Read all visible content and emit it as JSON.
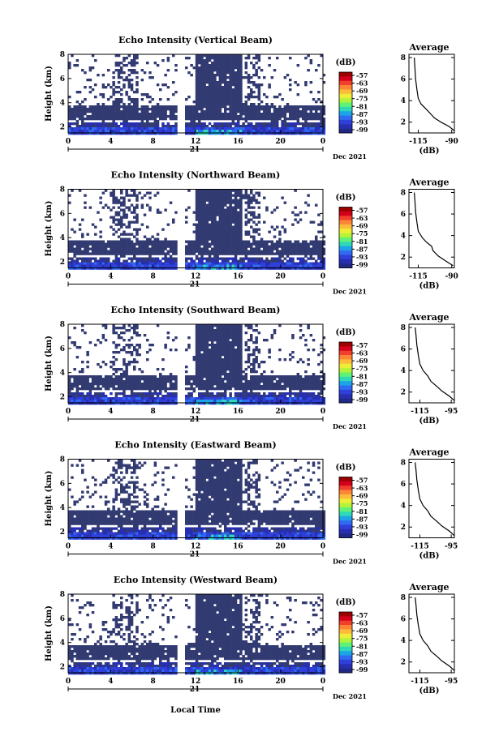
{
  "colorbar": {
    "unit": "(dB)",
    "labels": [
      "-57",
      "-63",
      "-69",
      "-75",
      "-81",
      "-87",
      "-93",
      "-99"
    ],
    "colors": [
      "#9d0000",
      "#d3001c",
      "#f0402c",
      "#fb8636",
      "#fdbb3c",
      "#eeee38",
      "#b5f23a",
      "#5ef276",
      "#2fd9b8",
      "#1ca3e8",
      "#2f6af0",
      "#2f3fd9",
      "#272fb0",
      "#202886"
    ]
  },
  "axes": {
    "ylabel": "Height (km)",
    "xlabel": "Local Time",
    "date_tag": "21",
    "date_label": "Dec 2021",
    "avg_title": "Average",
    "avg_xlabel": "(dB)"
  },
  "chart_data": [
    {
      "type": "heatmap",
      "title": "Echo Intensity (Vertical Beam)",
      "x_ticks": [
        "0",
        "4",
        "8",
        "12",
        "16",
        "20",
        "0"
      ],
      "y_ticks": [
        "2",
        "4",
        "6",
        "8"
      ],
      "xlim": [
        0,
        24
      ],
      "ylim": [
        1.5,
        8
      ],
      "avg_x_ticks": [
        "-115",
        "-90"
      ],
      "avg_profile": [
        [
          -88,
          1.2
        ],
        [
          -92,
          1.6
        ],
        [
          -98,
          2.0
        ],
        [
          -103,
          2.4
        ],
        [
          -106,
          2.8
        ],
        [
          -109,
          3.2
        ],
        [
          -113,
          3.7
        ],
        [
          -115,
          4.2
        ],
        [
          -116,
          5.0
        ],
        [
          -117,
          6.0
        ],
        [
          -117.5,
          7.0
        ],
        [
          -118,
          8.0
        ]
      ]
    },
    {
      "type": "heatmap",
      "title": "Echo Intensity (Northward Beam)",
      "x_ticks": [
        "0",
        "4",
        "8",
        "12",
        "16",
        "20",
        "0"
      ],
      "y_ticks": [
        "2",
        "4",
        "6",
        "8"
      ],
      "xlim": [
        0,
        24
      ],
      "ylim": [
        1.5,
        8
      ],
      "avg_x_ticks": [
        "-115",
        "-90"
      ],
      "avg_profile": [
        [
          -89,
          1.2
        ],
        [
          -94,
          1.6
        ],
        [
          -100,
          2.1
        ],
        [
          -104,
          2.6
        ],
        [
          -105,
          3.0
        ],
        [
          -109,
          3.4
        ],
        [
          -112,
          3.8
        ],
        [
          -115,
          4.4
        ],
        [
          -116,
          5.2
        ],
        [
          -117,
          6.2
        ],
        [
          -117.5,
          7.2
        ],
        [
          -118,
          8.0
        ]
      ]
    },
    {
      "type": "heatmap",
      "title": "Echo Intensity (Southward Beam)",
      "x_ticks": [
        "0",
        "4",
        "8",
        "12",
        "16",
        "20",
        "0"
      ],
      "y_ticks": [
        "2",
        "4",
        "6",
        "8"
      ],
      "xlim": [
        0,
        24
      ],
      "ylim": [
        1.5,
        8
      ],
      "avg_x_ticks": [
        "-115",
        "-95"
      ],
      "avg_profile": [
        [
          -93,
          1.2
        ],
        [
          -96,
          1.6
        ],
        [
          -101,
          2.1
        ],
        [
          -104,
          2.5
        ],
        [
          -108,
          3.0
        ],
        [
          -110,
          3.5
        ],
        [
          -113,
          4.0
        ],
        [
          -115,
          4.6
        ],
        [
          -116,
          5.4
        ],
        [
          -117,
          6.4
        ],
        [
          -117.5,
          7.3
        ],
        [
          -118,
          8.0
        ]
      ]
    },
    {
      "type": "heatmap",
      "title": "Echo Intensity (Eastward Beam)",
      "x_ticks": [
        "0",
        "4",
        "8",
        "12",
        "16",
        "20",
        "0"
      ],
      "y_ticks": [
        "2",
        "4",
        "6",
        "8"
      ],
      "xlim": [
        0,
        24
      ],
      "ylim": [
        1.5,
        8
      ],
      "avg_x_ticks": [
        "-115",
        "-95"
      ],
      "avg_profile": [
        [
          -93,
          1.2
        ],
        [
          -96,
          1.6
        ],
        [
          -101,
          2.1
        ],
        [
          -104,
          2.5
        ],
        [
          -108,
          3.0
        ],
        [
          -110,
          3.5
        ],
        [
          -113,
          4.0
        ],
        [
          -115,
          4.6
        ],
        [
          -116,
          5.4
        ],
        [
          -117,
          6.4
        ],
        [
          -117.5,
          7.3
        ],
        [
          -118,
          8.0
        ]
      ]
    },
    {
      "type": "heatmap",
      "title": "Echo Intensity (Westward Beam)",
      "x_ticks": [
        "0",
        "4",
        "8",
        "12",
        "16",
        "20",
        "0"
      ],
      "y_ticks": [
        "2",
        "4",
        "6",
        "8"
      ],
      "xlim": [
        0,
        24
      ],
      "ylim": [
        1.5,
        8
      ],
      "avg_x_ticks": [
        "-115",
        "-95"
      ],
      "avg_profile": [
        [
          -93,
          1.2
        ],
        [
          -96,
          1.6
        ],
        [
          -101,
          2.1
        ],
        [
          -104,
          2.5
        ],
        [
          -108,
          3.0
        ],
        [
          -110,
          3.5
        ],
        [
          -113,
          4.0
        ],
        [
          -115,
          4.6
        ],
        [
          -116,
          5.4
        ],
        [
          -117,
          6.4
        ],
        [
          -117.5,
          7.3
        ],
        [
          -118,
          8.0
        ]
      ]
    }
  ]
}
